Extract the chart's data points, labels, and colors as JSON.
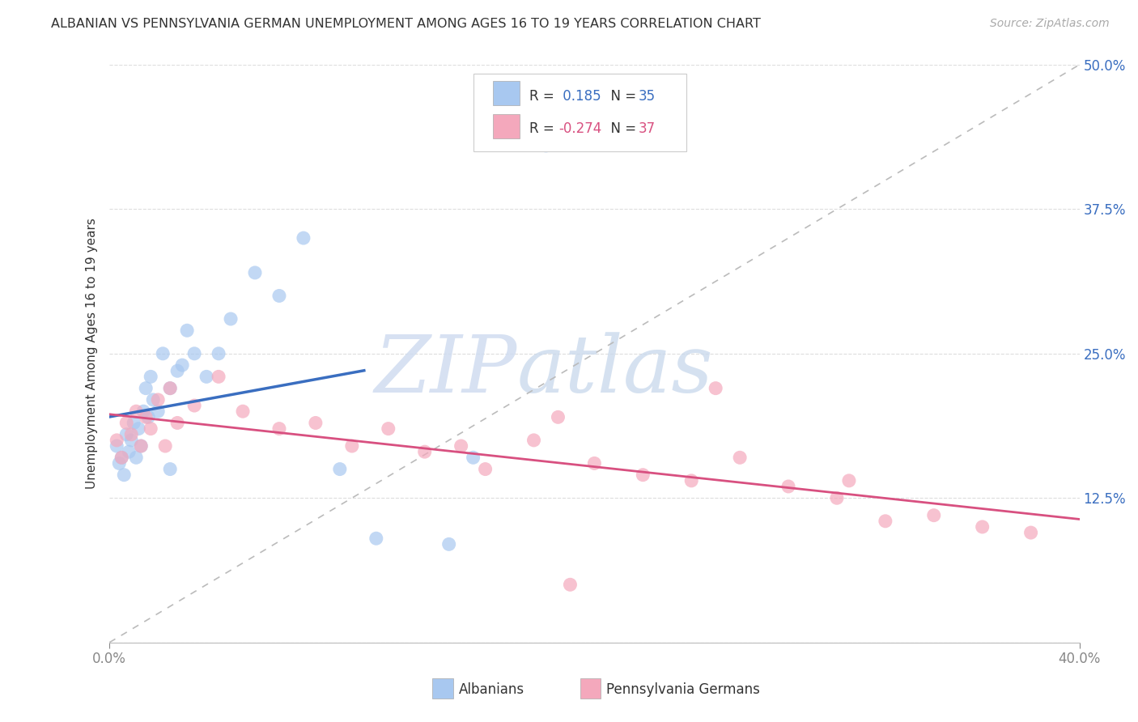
{
  "title": "ALBANIAN VS PENNSYLVANIA GERMAN UNEMPLOYMENT AMONG AGES 16 TO 19 YEARS CORRELATION CHART",
  "source": "Source: ZipAtlas.com",
  "ylabel": "Unemployment Among Ages 16 to 19 years",
  "xlim": [
    0.0,
    40.0
  ],
  "ylim": [
    0.0,
    50.0
  ],
  "blue_R": 0.185,
  "blue_N": 35,
  "pink_R": -0.274,
  "pink_N": 37,
  "blue_color": "#A8C8F0",
  "pink_color": "#F4A8BC",
  "blue_line_color": "#3A6EC0",
  "pink_line_color": "#D85080",
  "ref_line_color": "#BBBBBB",
  "background_color": "#FFFFFF",
  "legend_label_blue": "Albanians",
  "legend_label_pink": "Pennsylvania Germans",
  "alb_x": [
    0.3,
    0.4,
    0.5,
    0.6,
    0.7,
    0.8,
    0.9,
    1.0,
    1.1,
    1.2,
    1.3,
    1.4,
    1.5,
    1.6,
    1.7,
    1.8,
    2.0,
    2.2,
    2.5,
    2.8,
    3.0,
    3.2,
    3.5,
    4.0,
    4.5,
    5.0,
    6.0,
    7.0,
    8.0,
    9.5,
    11.0,
    14.0,
    15.0,
    18.0,
    2.5
  ],
  "alb_y": [
    17.0,
    15.5,
    16.0,
    14.5,
    18.0,
    16.5,
    17.5,
    19.0,
    16.0,
    18.5,
    17.0,
    20.0,
    22.0,
    19.5,
    23.0,
    21.0,
    20.0,
    25.0,
    22.0,
    23.5,
    24.0,
    27.0,
    25.0,
    23.0,
    25.0,
    28.0,
    32.0,
    30.0,
    35.0,
    15.0,
    9.0,
    8.5,
    16.0,
    43.0,
    15.0
  ],
  "pa_x": [
    0.3,
    0.5,
    0.7,
    0.9,
    1.1,
    1.3,
    1.5,
    1.7,
    2.0,
    2.3,
    2.5,
    2.8,
    3.5,
    4.5,
    5.5,
    7.0,
    8.5,
    10.0,
    11.5,
    13.0,
    14.5,
    15.5,
    17.5,
    18.5,
    20.0,
    22.0,
    24.0,
    26.0,
    28.0,
    30.0,
    30.5,
    32.0,
    34.0,
    36.0,
    38.0,
    25.0,
    19.0
  ],
  "pa_y": [
    17.5,
    16.0,
    19.0,
    18.0,
    20.0,
    17.0,
    19.5,
    18.5,
    21.0,
    17.0,
    22.0,
    19.0,
    20.5,
    23.0,
    20.0,
    18.5,
    19.0,
    17.0,
    18.5,
    16.5,
    17.0,
    15.0,
    17.5,
    19.5,
    15.5,
    14.5,
    14.0,
    16.0,
    13.5,
    12.5,
    14.0,
    10.5,
    11.0,
    10.0,
    9.5,
    22.0,
    5.0
  ]
}
